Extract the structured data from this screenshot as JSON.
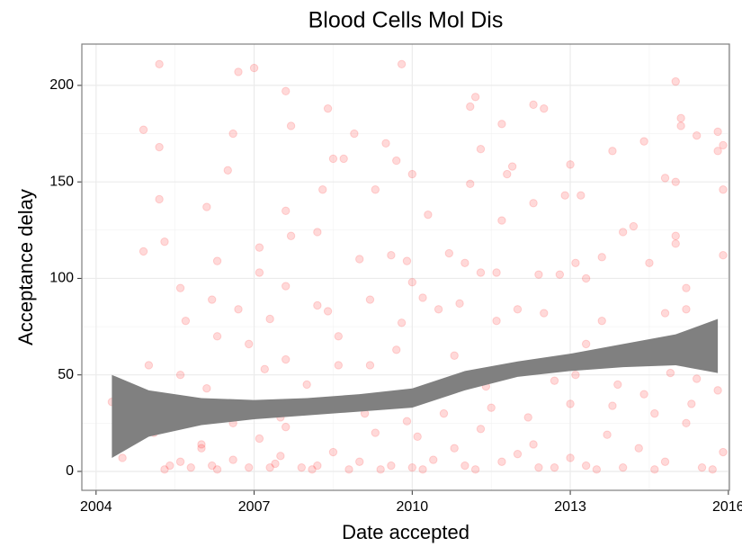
{
  "chart_data": {
    "type": "scatter",
    "title": "Blood Cells Mol Dis",
    "x_label": "Date accepted",
    "y_label": "Acceptance delay",
    "color": "#ff0000",
    "alpha": 0.15,
    "x": [
      2005.2,
      2006.7,
      2007.0,
      2007.6,
      2009.8,
      2015.0,
      2004.9,
      2005.2,
      2006.6,
      2007.7,
      2008.4,
      2008.9,
      2009.5,
      2011.2,
      2011.1,
      2011.7,
      2012.3,
      2012.5,
      2014.4,
      2015.1,
      2015.1,
      2015.4,
      2015.8,
      2015.9,
      2015.8,
      2005.2,
      2006.1,
      2006.5,
      2007.6,
      2008.3,
      2008.5,
      2008.7,
      2009.3,
      2009.7,
      2010.0,
      2010.3,
      2011.1,
      2011.3,
      2011.9,
      2011.8,
      2012.3,
      2012.9,
      2013.0,
      2013.2,
      2013.8,
      2014.8,
      2015.0,
      2015.9,
      2005.3,
      2004.9,
      2006.3,
      2007.1,
      2007.7,
      2008.2,
      2009.0,
      2009.6,
      2009.9,
      2010.2,
      2010.7,
      2011.0,
      2011.3,
      2011.6,
      2011.7,
      2012.4,
      2012.8,
      2013.1,
      2013.3,
      2013.6,
      2014.0,
      2014.2,
      2014.5,
      2015.0,
      2015.0,
      2015.2,
      2015.9,
      2005.6,
      2005.7,
      2006.2,
      2006.7,
      2007.1,
      2007.3,
      2007.6,
      2008.2,
      2008.4,
      2008.6,
      2009.2,
      2009.8,
      2010.0,
      2010.5,
      2010.9,
      2011.6,
      2012.0,
      2012.5,
      2013.3,
      2013.6,
      2014.3,
      2014.8,
      2015.2,
      2015.5,
      2015.6,
      2005.0,
      2005.6,
      2006.1,
      2006.3,
      2006.9,
      2007.2,
      2007.6,
      2008.0,
      2008.6,
      2009.2,
      2009.7,
      2010.3,
      2010.8,
      2011.4,
      2012.1,
      2012.7,
      2013.1,
      2013.9,
      2014.4,
      2014.9,
      2015.4,
      2015.8,
      2004.5,
      2004.3,
      2005.1,
      2005.4,
      2005.6,
      2005.8,
      2006.0,
      2006.0,
      2006.2,
      2006.6,
      2006.9,
      2007.1,
      2007.4,
      2007.5,
      2007.6,
      2007.9,
      2008.2,
      2008.5,
      2008.8,
      2009.0,
      2009.3,
      2009.6,
      2010.0,
      2010.1,
      2010.4,
      2010.8,
      2011.0,
      2011.3,
      2011.7,
      2012.0,
      2012.3,
      2012.7,
      2013.0,
      2013.3,
      2013.7,
      2014.0,
      2014.3,
      2014.8,
      2015.2,
      2015.5,
      2015.9,
      2005.9,
      2006.6,
      2007.5,
      2008.3,
      2009.1,
      2009.9,
      2010.6,
      2011.5,
      2012.2,
      2013.0,
      2013.8,
      2014.6,
      2015.3,
      2005.3,
      2006.3,
      2007.3,
      2008.1,
      2009.4,
      2010.2,
      2011.2,
      2012.4,
      2013.5,
      2014.6,
      2015.7
    ],
    "values": [
      211,
      207,
      209,
      197,
      211,
      202,
      177,
      168,
      175,
      179,
      188,
      175,
      170,
      194,
      189,
      180,
      190,
      188,
      171,
      183,
      179,
      174,
      176,
      169,
      166,
      141,
      137,
      156,
      135,
      146,
      162,
      162,
      146,
      161,
      154,
      133,
      149,
      167,
      158,
      154,
      139,
      143,
      159,
      143,
      166,
      152,
      150,
      146,
      119,
      114,
      109,
      116,
      122,
      124,
      110,
      112,
      109,
      90,
      113,
      108,
      103,
      103,
      130,
      102,
      102,
      108,
      100,
      111,
      124,
      127,
      108,
      118,
      122,
      95,
      112,
      95,
      78,
      89,
      84,
      103,
      79,
      96,
      86,
      83,
      70,
      89,
      77,
      98,
      84,
      87,
      78,
      84,
      82,
      66,
      78,
      65,
      82,
      84,
      68,
      69,
      55,
      50,
      43,
      70,
      66,
      53,
      58,
      45,
      55,
      55,
      63,
      40,
      60,
      44,
      53,
      47,
      50,
      45,
      40,
      51,
      48,
      42,
      7,
      36,
      20,
      3,
      5,
      2,
      14,
      12,
      3,
      6,
      2,
      17,
      4,
      8,
      23,
      2,
      3,
      10,
      1,
      5,
      20,
      3,
      2,
      18,
      6,
      12,
      3,
      22,
      5,
      9,
      14,
      2,
      7,
      3,
      19,
      2,
      12,
      5,
      25,
      2,
      10,
      30,
      25,
      28,
      32,
      30,
      26,
      30,
      33,
      28,
      35,
      34,
      30,
      35,
      1,
      1,
      2,
      1,
      1,
      1,
      1,
      2,
      1,
      1,
      1
    ],
    "band": {
      "color": "#808080",
      "x": [
        2004.3,
        2005,
        2006,
        2007,
        2008,
        2009,
        2010,
        2011,
        2012,
        2013,
        2014,
        2015,
        2015.8
      ],
      "lower": [
        7,
        18,
        24,
        27,
        29,
        31,
        33,
        42,
        49,
        52,
        54,
        55,
        51
      ],
      "upper": [
        50,
        42,
        38,
        37,
        38,
        40,
        43,
        52,
        57,
        61,
        66,
        71,
        79
      ]
    },
    "xlim": [
      2003.73,
      2016.02
    ],
    "ylim": [
      -9.8,
      221.4
    ],
    "xticks": [
      2004,
      2007,
      2010,
      2013,
      2016
    ],
    "yticks": [
      0,
      50,
      100,
      150,
      200
    ],
    "grid": true
  }
}
